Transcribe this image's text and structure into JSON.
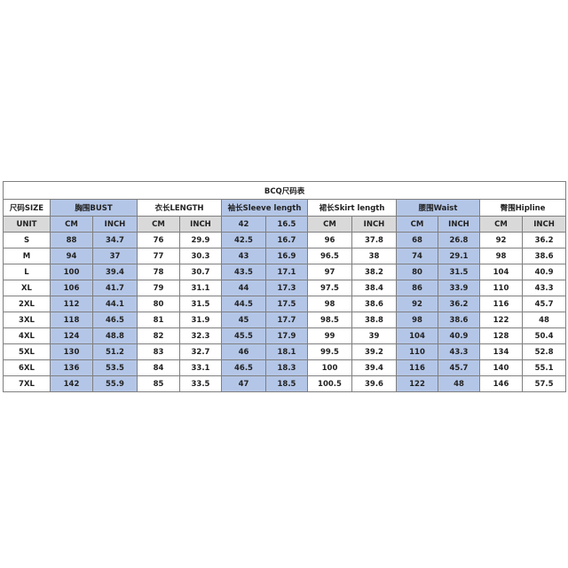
{
  "title": "BCQ尺码表",
  "size_header": "尺码SIZE",
  "unit_label": "UNIT",
  "colors": {
    "blue_fill": "#b4c6e7",
    "gray_fill": "#d9d9d9"
  },
  "groups": [
    {
      "label": "胸围BUST",
      "blue": true,
      "units": [
        "CM",
        "INCH"
      ]
    },
    {
      "label": "衣长LENGTH",
      "blue": false,
      "units": [
        "CM",
        "INCH"
      ]
    },
    {
      "label": "袖长Sleeve length",
      "blue": true,
      "units": [
        "42",
        "16.5"
      ]
    },
    {
      "label": "裙长Skirt length",
      "blue": false,
      "units": [
        "CM",
        "INCH"
      ]
    },
    {
      "label": "腰围Waist",
      "blue": true,
      "units": [
        "CM",
        "INCH"
      ]
    },
    {
      "label": "臀围Hipline",
      "blue": false,
      "units": [
        "CM",
        "INCH"
      ]
    }
  ],
  "rows": [
    {
      "size": "S",
      "values": [
        "88",
        "34.7",
        "76",
        "29.9",
        "42.5",
        "16.7",
        "96",
        "37.8",
        "68",
        "26.8",
        "92",
        "36.2"
      ]
    },
    {
      "size": "M",
      "values": [
        "94",
        "37",
        "77",
        "30.3",
        "43",
        "16.9",
        "96.5",
        "38",
        "74",
        "29.1",
        "98",
        "38.6"
      ]
    },
    {
      "size": "L",
      "values": [
        "100",
        "39.4",
        "78",
        "30.7",
        "43.5",
        "17.1",
        "97",
        "38.2",
        "80",
        "31.5",
        "104",
        "40.9"
      ]
    },
    {
      "size": "XL",
      "values": [
        "106",
        "41.7",
        "79",
        "31.1",
        "44",
        "17.3",
        "97.5",
        "38.4",
        "86",
        "33.9",
        "110",
        "43.3"
      ]
    },
    {
      "size": "2XL",
      "values": [
        "112",
        "44.1",
        "80",
        "31.5",
        "44.5",
        "17.5",
        "98",
        "38.6",
        "92",
        "36.2",
        "116",
        "45.7"
      ]
    },
    {
      "size": "3XL",
      "values": [
        "118",
        "46.5",
        "81",
        "31.9",
        "45",
        "17.7",
        "98.5",
        "38.8",
        "98",
        "38.6",
        "122",
        "48"
      ]
    },
    {
      "size": "4XL",
      "values": [
        "124",
        "48.8",
        "82",
        "32.3",
        "45.5",
        "17.9",
        "99",
        "39",
        "104",
        "40.9",
        "128",
        "50.4"
      ]
    },
    {
      "size": "5XL",
      "values": [
        "130",
        "51.2",
        "83",
        "32.7",
        "46",
        "18.1",
        "99.5",
        "39.2",
        "110",
        "43.3",
        "134",
        "52.8"
      ]
    },
    {
      "size": "6XL",
      "values": [
        "136",
        "53.5",
        "84",
        "33.1",
        "46.5",
        "18.3",
        "100",
        "39.4",
        "116",
        "45.7",
        "140",
        "55.1"
      ]
    },
    {
      "size": "7XL",
      "values": [
        "142",
        "55.9",
        "85",
        "33.5",
        "47",
        "18.5",
        "100.5",
        "39.6",
        "122",
        "48",
        "146",
        "57.5"
      ]
    }
  ]
}
